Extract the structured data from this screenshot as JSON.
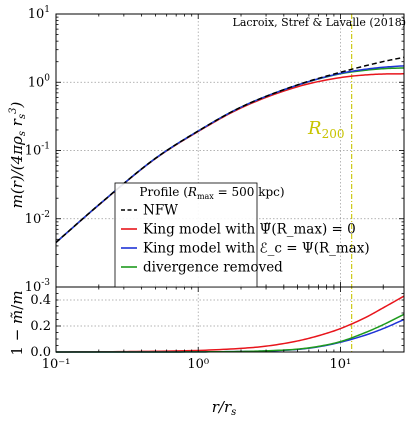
{
  "chart_data": [
    {
      "type": "line",
      "panel": "top",
      "credit": "Lacroix, Stref & Lavalle (2018)",
      "xlabel": "r/r_s",
      "ylabel": "m(r)/(4πρ_s r_s³)",
      "xscale": "log",
      "yscale": "log",
      "xlim": [
        0.1,
        28
      ],
      "ylim": [
        0.001,
        10
      ],
      "xticks": [
        "10⁻¹",
        "10⁰",
        "10¹"
      ],
      "yticks": [
        {
          "base": "10",
          "exp": "1"
        },
        {
          "base": "10",
          "exp": "0"
        },
        {
          "base": "10",
          "exp": "-1"
        },
        {
          "base": "10",
          "exp": "-2"
        },
        {
          "base": "10",
          "exp": "-3"
        }
      ],
      "grid": true,
      "annotation": {
        "text": "R200",
        "main": "R",
        "sub": "200",
        "x": 12.0,
        "color": "#c8c400"
      },
      "legend": {
        "title_prefix": "Profile (",
        "title_r": "R",
        "title_sub": "max",
        "title_suffix": " = 500 kpc)",
        "placement": "lower-center",
        "entries": [
          {
            "label": "NFW",
            "color": "#000000",
            "style": "dashed"
          },
          {
            "label": "King model with Ψ̃(R_max) = 0",
            "color": "#e8151c",
            "style": "solid"
          },
          {
            "label": "King model with ℰ_c = Ψ(R_max)",
            "color": "#1f34d6",
            "style": "solid"
          },
          {
            "label": "divergence removed",
            "color": "#1e9a1e",
            "style": "solid"
          }
        ]
      },
      "series": [
        {
          "name": "NFW",
          "color": "#000000",
          "style": "dashed",
          "x": [
            0.1,
            0.2,
            0.5,
            1,
            2,
            5,
            10,
            20,
            28
          ],
          "y": [
            0.0045,
            0.016,
            0.0766,
            0.193,
            0.432,
            0.917,
            1.4,
            2.01,
            2.32
          ]
        },
        {
          "name": "King model with Ψ̃(R_max) = 0",
          "color": "#e8151c",
          "style": "solid",
          "x": [
            0.1,
            0.2,
            0.5,
            1,
            2,
            5,
            10,
            15,
            20,
            28
          ],
          "y": [
            0.0045,
            0.0159,
            0.076,
            0.19,
            0.42,
            0.86,
            1.17,
            1.28,
            1.32,
            1.33
          ]
        },
        {
          "name": "King model with ℰ_c = Ψ(R_max)",
          "color": "#1f34d6",
          "style": "solid",
          "x": [
            0.1,
            0.2,
            0.5,
            1,
            2,
            5,
            10,
            15,
            20,
            28
          ],
          "y": [
            0.0045,
            0.016,
            0.0766,
            0.193,
            0.432,
            0.91,
            1.35,
            1.55,
            1.66,
            1.74
          ]
        },
        {
          "name": "divergence removed",
          "color": "#1e9a1e",
          "style": "solid",
          "x": [
            0.1,
            0.2,
            0.5,
            1,
            2,
            5,
            10,
            15,
            20,
            28
          ],
          "y": [
            0.0045,
            0.016,
            0.0766,
            0.193,
            0.432,
            0.908,
            1.33,
            1.5,
            1.58,
            1.62
          ]
        }
      ]
    },
    {
      "type": "line",
      "panel": "bottom",
      "xlabel": "r/r_s",
      "ylabel": "1 − m̃/m",
      "xscale": "log",
      "yscale": "linear",
      "xlim": [
        0.1,
        28
      ],
      "ylim": [
        0.0,
        0.5
      ],
      "yticks": [
        "0.0",
        "0.2",
        "0.4"
      ],
      "xticks": [
        "10⁻¹",
        "10⁰",
        "10¹"
      ],
      "grid": true,
      "series": [
        {
          "name": "King model with Ψ̃(R_max) = 0",
          "color": "#e8151c",
          "style": "solid",
          "x": [
            0.1,
            0.3,
            1,
            2,
            3,
            5,
            7,
            10,
            15,
            20,
            28
          ],
          "y": [
            0.0,
            0.003,
            0.012,
            0.028,
            0.045,
            0.085,
            0.125,
            0.18,
            0.265,
            0.34,
            0.43
          ]
        },
        {
          "name": "King model with ℰ_c = Ψ(R_max)",
          "color": "#1f34d6",
          "style": "solid",
          "x": [
            0.1,
            0.3,
            1,
            2,
            3,
            5,
            7,
            10,
            15,
            20,
            28
          ],
          "y": [
            0.0,
            0.0,
            0.001,
            0.004,
            0.008,
            0.02,
            0.04,
            0.075,
            0.13,
            0.18,
            0.25
          ]
        },
        {
          "name": "divergence removed",
          "color": "#1e9a1e",
          "style": "solid",
          "x": [
            0.1,
            0.3,
            1,
            2,
            3,
            5,
            7,
            10,
            15,
            20,
            28
          ],
          "y": [
            0.0,
            0.0,
            0.001,
            0.004,
            0.009,
            0.022,
            0.043,
            0.08,
            0.15,
            0.21,
            0.29
          ]
        }
      ]
    }
  ]
}
